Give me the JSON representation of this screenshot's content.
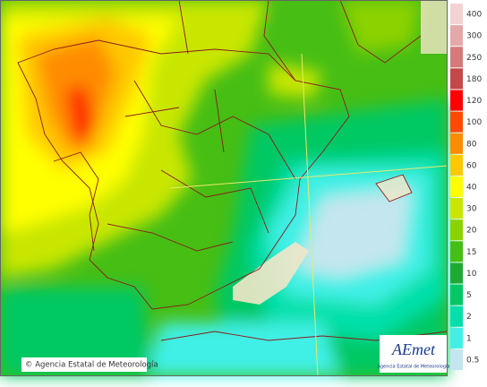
{
  "legend": {
    "items": [
      {
        "label": "400",
        "color": "#f2d2d2"
      },
      {
        "label": "300",
        "color": "#e4a8a8"
      },
      {
        "label": "250",
        "color": "#d47a7a"
      },
      {
        "label": "180",
        "color": "#c44848"
      },
      {
        "label": "120",
        "color": "#ff0000"
      },
      {
        "label": "100",
        "color": "#ff4a00"
      },
      {
        "label": "80",
        "color": "#ff8c00"
      },
      {
        "label": "60",
        "color": "#ffc800"
      },
      {
        "label": "40",
        "color": "#ffff00"
      },
      {
        "label": "30",
        "color": "#c8e600"
      },
      {
        "label": "20",
        "color": "#8cd200"
      },
      {
        "label": "15",
        "color": "#46be14"
      },
      {
        "label": "10",
        "color": "#1eaa32"
      },
      {
        "label": "5",
        "color": "#00c864"
      },
      {
        "label": "2",
        "color": "#00e0aa"
      },
      {
        "label": "1",
        "color": "#40f0e6"
      },
      {
        "label": "0.5",
        "color": "#c4e6ee"
      }
    ]
  },
  "credit": "© Agencia Estatal de Meteorología",
  "logo": {
    "name": "AEmet",
    "subtitle": "Agencia Estatal de Meteorología"
  }
}
